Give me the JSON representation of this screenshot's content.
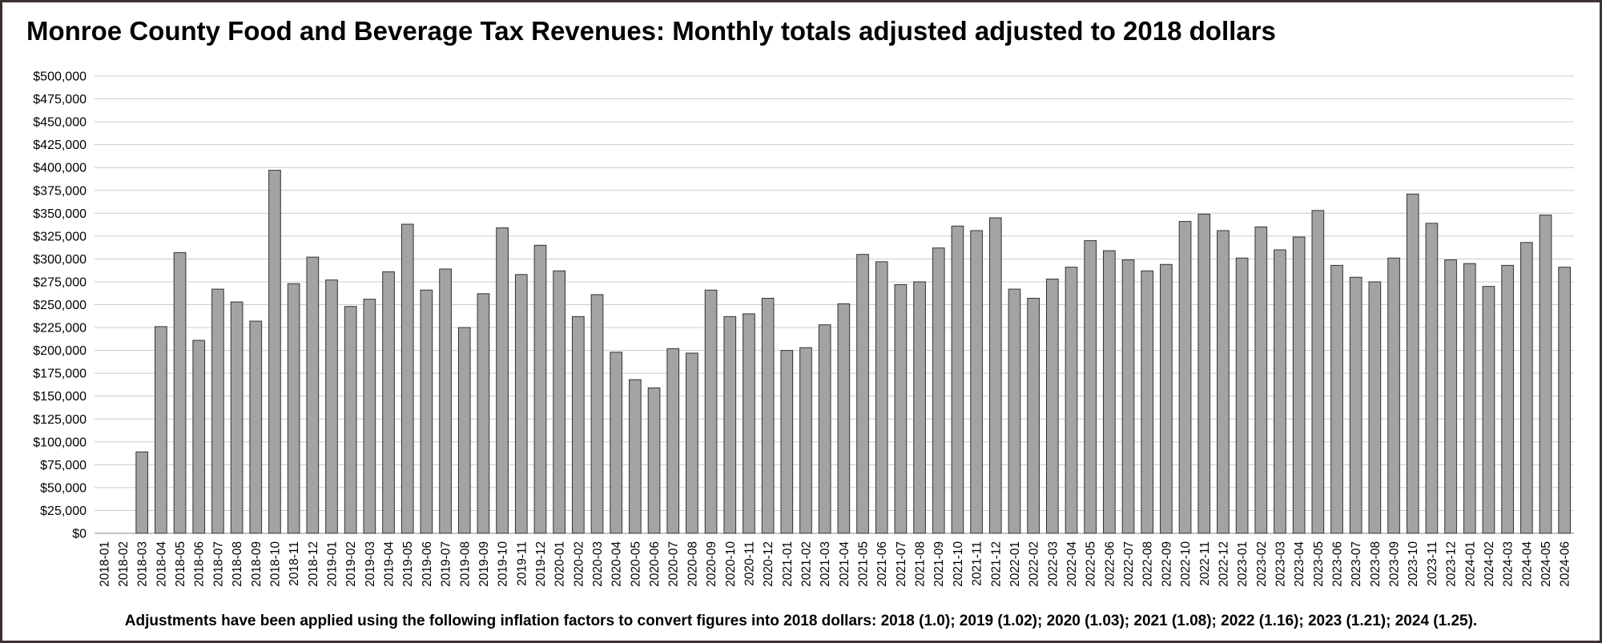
{
  "chart_data": {
    "type": "bar",
    "title": "Monroe County Food and Beverage Tax Revenues: Monthly totals adjusted adjusted to 2018 dollars",
    "footnote": "Adjustments have been applied using the following inflation factors to convert figures into 2018 dollars: 2018 (1.0); 2019 (1.02); 2020 (1.03); 2021 (1.08); 2022 (1.16); 2023 (1.21); 2024 (1.25).",
    "xlabel": "",
    "ylabel": "",
    "ylim": [
      0,
      500000
    ],
    "ytick_step": 25000,
    "ytick_labels": [
      "$0",
      "$25,000",
      "$50,000",
      "$75,000",
      "$100,000",
      "$125,000",
      "$150,000",
      "$175,000",
      "$200,000",
      "$225,000",
      "$250,000",
      "$275,000",
      "$300,000",
      "$325,000",
      "$350,000",
      "$375,000",
      "$400,000",
      "$425,000",
      "$450,000",
      "$475,000",
      "$500,000"
    ],
    "grid": true,
    "bar_color": "#a3a3a3",
    "bar_edge_color": "#333333",
    "grid_color": "#cccccc",
    "categories": [
      "2018-01",
      "2018-02",
      "2018-03",
      "2018-04",
      "2018-05",
      "2018-06",
      "2018-07",
      "2018-08",
      "2018-09",
      "2018-10",
      "2018-11",
      "2018-12",
      "2019-01",
      "2019-02",
      "2019-03",
      "2019-04",
      "2019-05",
      "2019-06",
      "2019-07",
      "2019-08",
      "2019-09",
      "2019-10",
      "2019-11",
      "2019-12",
      "2020-01",
      "2020-02",
      "2020-03",
      "2020-04",
      "2020-05",
      "2020-06",
      "2020-07",
      "2020-08",
      "2020-09",
      "2020-10",
      "2020-11",
      "2020-12",
      "2021-01",
      "2021-02",
      "2021-03",
      "2021-04",
      "2021-05",
      "2021-06",
      "2021-07",
      "2021-08",
      "2021-09",
      "2021-10",
      "2021-11",
      "2021-12",
      "2022-01",
      "2022-02",
      "2022-03",
      "2022-04",
      "2022-05",
      "2022-06",
      "2022-07",
      "2022-08",
      "2022-09",
      "2022-10",
      "2022-11",
      "2022-12",
      "2023-01",
      "2023-02",
      "2023-03",
      "2023-04",
      "2023-05",
      "2023-06",
      "2023-07",
      "2023-08",
      "2023-09",
      "2023-10",
      "2023-11",
      "2023-12",
      "2024-01",
      "2024-02",
      "2024-03",
      "2024-04",
      "2024-05",
      "2024-06"
    ],
    "values": [
      0,
      0,
      89000,
      226000,
      307000,
      211000,
      267000,
      253000,
      232000,
      397000,
      273000,
      302000,
      277000,
      248000,
      256000,
      286000,
      338000,
      266000,
      289000,
      225000,
      262000,
      334000,
      283000,
      315000,
      287000,
      237000,
      261000,
      198000,
      168000,
      159000,
      202000,
      197000,
      266000,
      237000,
      240000,
      257000,
      200000,
      203000,
      228000,
      251000,
      305000,
      297000,
      272000,
      275000,
      312000,
      336000,
      331000,
      345000,
      267000,
      257000,
      278000,
      291000,
      320000,
      309000,
      299000,
      287000,
      294000,
      341000,
      349000,
      331000,
      301000,
      335000,
      310000,
      324000,
      353000,
      293000,
      280000,
      275000,
      301000,
      371000,
      339000,
      299000,
      295000,
      270000,
      293000,
      318000,
      348000,
      291000
    ]
  }
}
